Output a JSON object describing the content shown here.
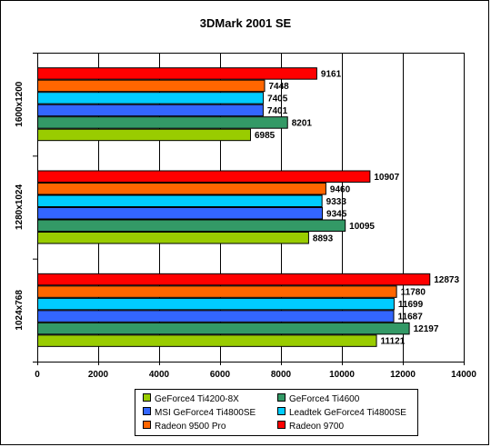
{
  "chart_data": {
    "type": "bar",
    "orientation": "horizontal",
    "title": "3DMark 2001 SE",
    "categories": [
      "1600x1200",
      "1280x1024",
      "1024x768"
    ],
    "xlim": [
      0,
      14000
    ],
    "xticks": [
      0,
      2000,
      4000,
      6000,
      8000,
      10000,
      12000,
      14000
    ],
    "grid": true,
    "legend_position": "bottom",
    "series": [
      {
        "name": "GeForce4 Ti4200-8X",
        "color": "#99cc00",
        "values": [
          6985,
          8893,
          11121
        ]
      },
      {
        "name": "GeForce4 Ti4600",
        "color": "#339966",
        "values": [
          8201,
          10095,
          12197
        ]
      },
      {
        "name": "MSI GeForce4 Ti4800SE",
        "color": "#3366ff",
        "values": [
          7401,
          9345,
          11687
        ]
      },
      {
        "name": "Leadtek GeForce4 Ti4800SE",
        "color": "#00ccff",
        "values": [
          7405,
          9333,
          11699
        ]
      },
      {
        "name": "Radeon 9500 Pro",
        "color": "#ff6600",
        "values": [
          7448,
          9460,
          11780
        ]
      },
      {
        "name": "Radeon 9700",
        "color": "#ff0000",
        "values": [
          9161,
          10907,
          12873
        ]
      }
    ]
  }
}
